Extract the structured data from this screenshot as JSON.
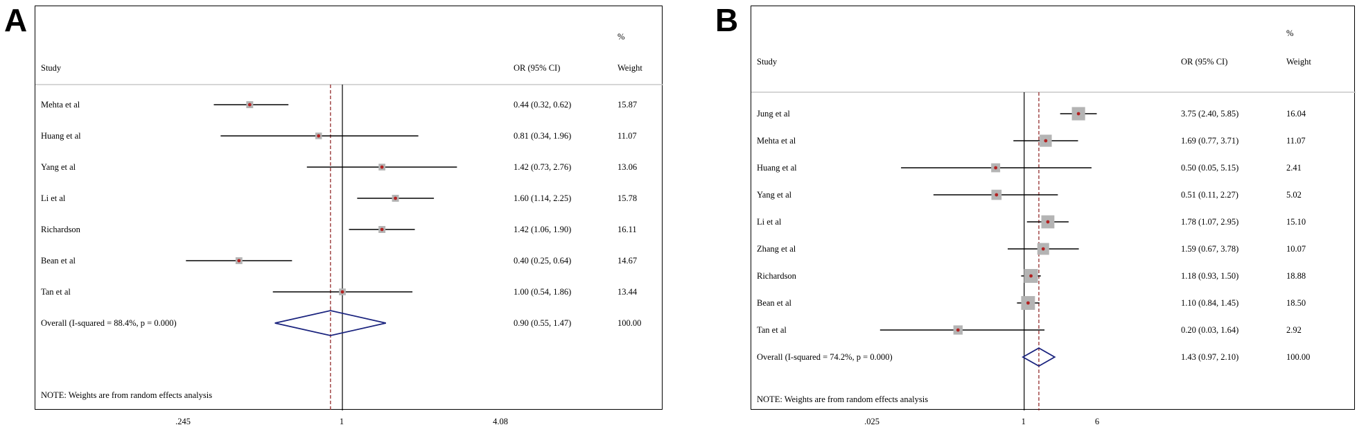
{
  "chart_data": [
    {
      "type": "forest",
      "panel_label": "A",
      "column_headers": {
        "study": "Study",
        "or_ci": "OR (95% CI)",
        "weight_top": "%",
        "weight": "Weight"
      },
      "scale": "log",
      "null_line": 1,
      "pooled_line": 0.9,
      "x_ticks": [
        {
          "value": 0.245,
          "label": ".245"
        },
        {
          "value": 1,
          "label": "1"
        },
        {
          "value": 4.08,
          "label": "4.08"
        }
      ],
      "studies": [
        {
          "name": "Mehta et al",
          "or": 0.44,
          "lo": 0.32,
          "hi": 0.62,
          "or_text": "0.44 (0.32, 0.62)",
          "weight": "15.87"
        },
        {
          "name": "Huang et al",
          "or": 0.81,
          "lo": 0.34,
          "hi": 1.96,
          "or_text": "0.81 (0.34, 1.96)",
          "weight": "11.07"
        },
        {
          "name": "Yang et al",
          "or": 1.42,
          "lo": 0.73,
          "hi": 2.76,
          "or_text": "1.42 (0.73, 2.76)",
          "weight": "13.06"
        },
        {
          "name": "Li et al",
          "or": 1.6,
          "lo": 1.14,
          "hi": 2.25,
          "or_text": "1.60 (1.14, 2.25)",
          "weight": "15.78"
        },
        {
          "name": "Richardson",
          "or": 1.42,
          "lo": 1.06,
          "hi": 1.9,
          "or_text": "1.42 (1.06, 1.90)",
          "weight": "16.11"
        },
        {
          "name": "Bean et al",
          "or": 0.4,
          "lo": 0.25,
          "hi": 0.64,
          "or_text": "0.40 (0.25, 0.64)",
          "weight": "14.67"
        },
        {
          "name": "Tan et al",
          "or": 1.0,
          "lo": 0.54,
          "hi": 1.86,
          "or_text": "1.00 (0.54, 1.86)",
          "weight": "13.44"
        }
      ],
      "overall": {
        "label": "Overall  (I-squared = 88.4%, p = 0.000)",
        "or": 0.9,
        "lo": 0.55,
        "hi": 1.47,
        "or_text": "0.90 (0.55, 1.47)",
        "weight": "100.00"
      },
      "note": "NOTE: Weights are from random effects analysis",
      "colors": {
        "point": "#b22222",
        "box": "#b4b4b4",
        "diamond": "#1a237e",
        "dashed": "#8b1a1a"
      }
    },
    {
      "type": "forest",
      "panel_label": "B",
      "column_headers": {
        "study": "Study",
        "or_ci": "OR (95% CI)",
        "weight_top": "%",
        "weight": "Weight"
      },
      "scale": "log",
      "null_line": 1,
      "pooled_line": 1.43,
      "x_ticks": [
        {
          "value": 0.025,
          "label": ".025"
        },
        {
          "value": 1,
          "label": "1"
        },
        {
          "value": 6,
          "label": "6"
        }
      ],
      "studies": [
        {
          "name": "Jung et al",
          "or": 3.75,
          "lo": 2.4,
          "hi": 5.85,
          "or_text": "3.75 (2.40, 5.85)",
          "weight": "16.04"
        },
        {
          "name": "Mehta et al",
          "or": 1.69,
          "lo": 0.77,
          "hi": 3.71,
          "or_text": "1.69 (0.77, 3.71)",
          "weight": "11.07"
        },
        {
          "name": "Huang et al",
          "or": 0.5,
          "lo": 0.05,
          "hi": 5.15,
          "or_text": "0.50 (0.05, 5.15)",
          "weight": "2.41"
        },
        {
          "name": "Yang et al",
          "or": 0.51,
          "lo": 0.11,
          "hi": 2.27,
          "or_text": "0.51 (0.11, 2.27)",
          "weight": "5.02"
        },
        {
          "name": "Li et al",
          "or": 1.78,
          "lo": 1.07,
          "hi": 2.95,
          "or_text": "1.78 (1.07, 2.95)",
          "weight": "15.10"
        },
        {
          "name": "Zhang et al",
          "or": 1.59,
          "lo": 0.67,
          "hi": 3.78,
          "or_text": "1.59 (0.67, 3.78)",
          "weight": "10.07"
        },
        {
          "name": "Richardson",
          "or": 1.18,
          "lo": 0.93,
          "hi": 1.5,
          "or_text": "1.18 (0.93, 1.50)",
          "weight": "18.88"
        },
        {
          "name": "Bean et al",
          "or": 1.1,
          "lo": 0.84,
          "hi": 1.45,
          "or_text": "1.10 (0.84, 1.45)",
          "weight": "18.50"
        },
        {
          "name": "Tan et al",
          "or": 0.2,
          "lo": 0.03,
          "hi": 1.64,
          "or_text": "0.20 (0.03, 1.64)",
          "weight": "2.92"
        }
      ],
      "overall": {
        "label": "Overall  (I-squared = 74.2%, p = 0.000)",
        "or": 1.43,
        "lo": 0.97,
        "hi": 2.1,
        "or_text": "1.43 (0.97, 2.10)",
        "weight": "100.00"
      },
      "note": "NOTE: Weights are from random effects analysis",
      "colors": {
        "point": "#b22222",
        "box": "#b4b4b4",
        "diamond": "#1a237e",
        "dashed": "#8b1a1a"
      }
    }
  ]
}
